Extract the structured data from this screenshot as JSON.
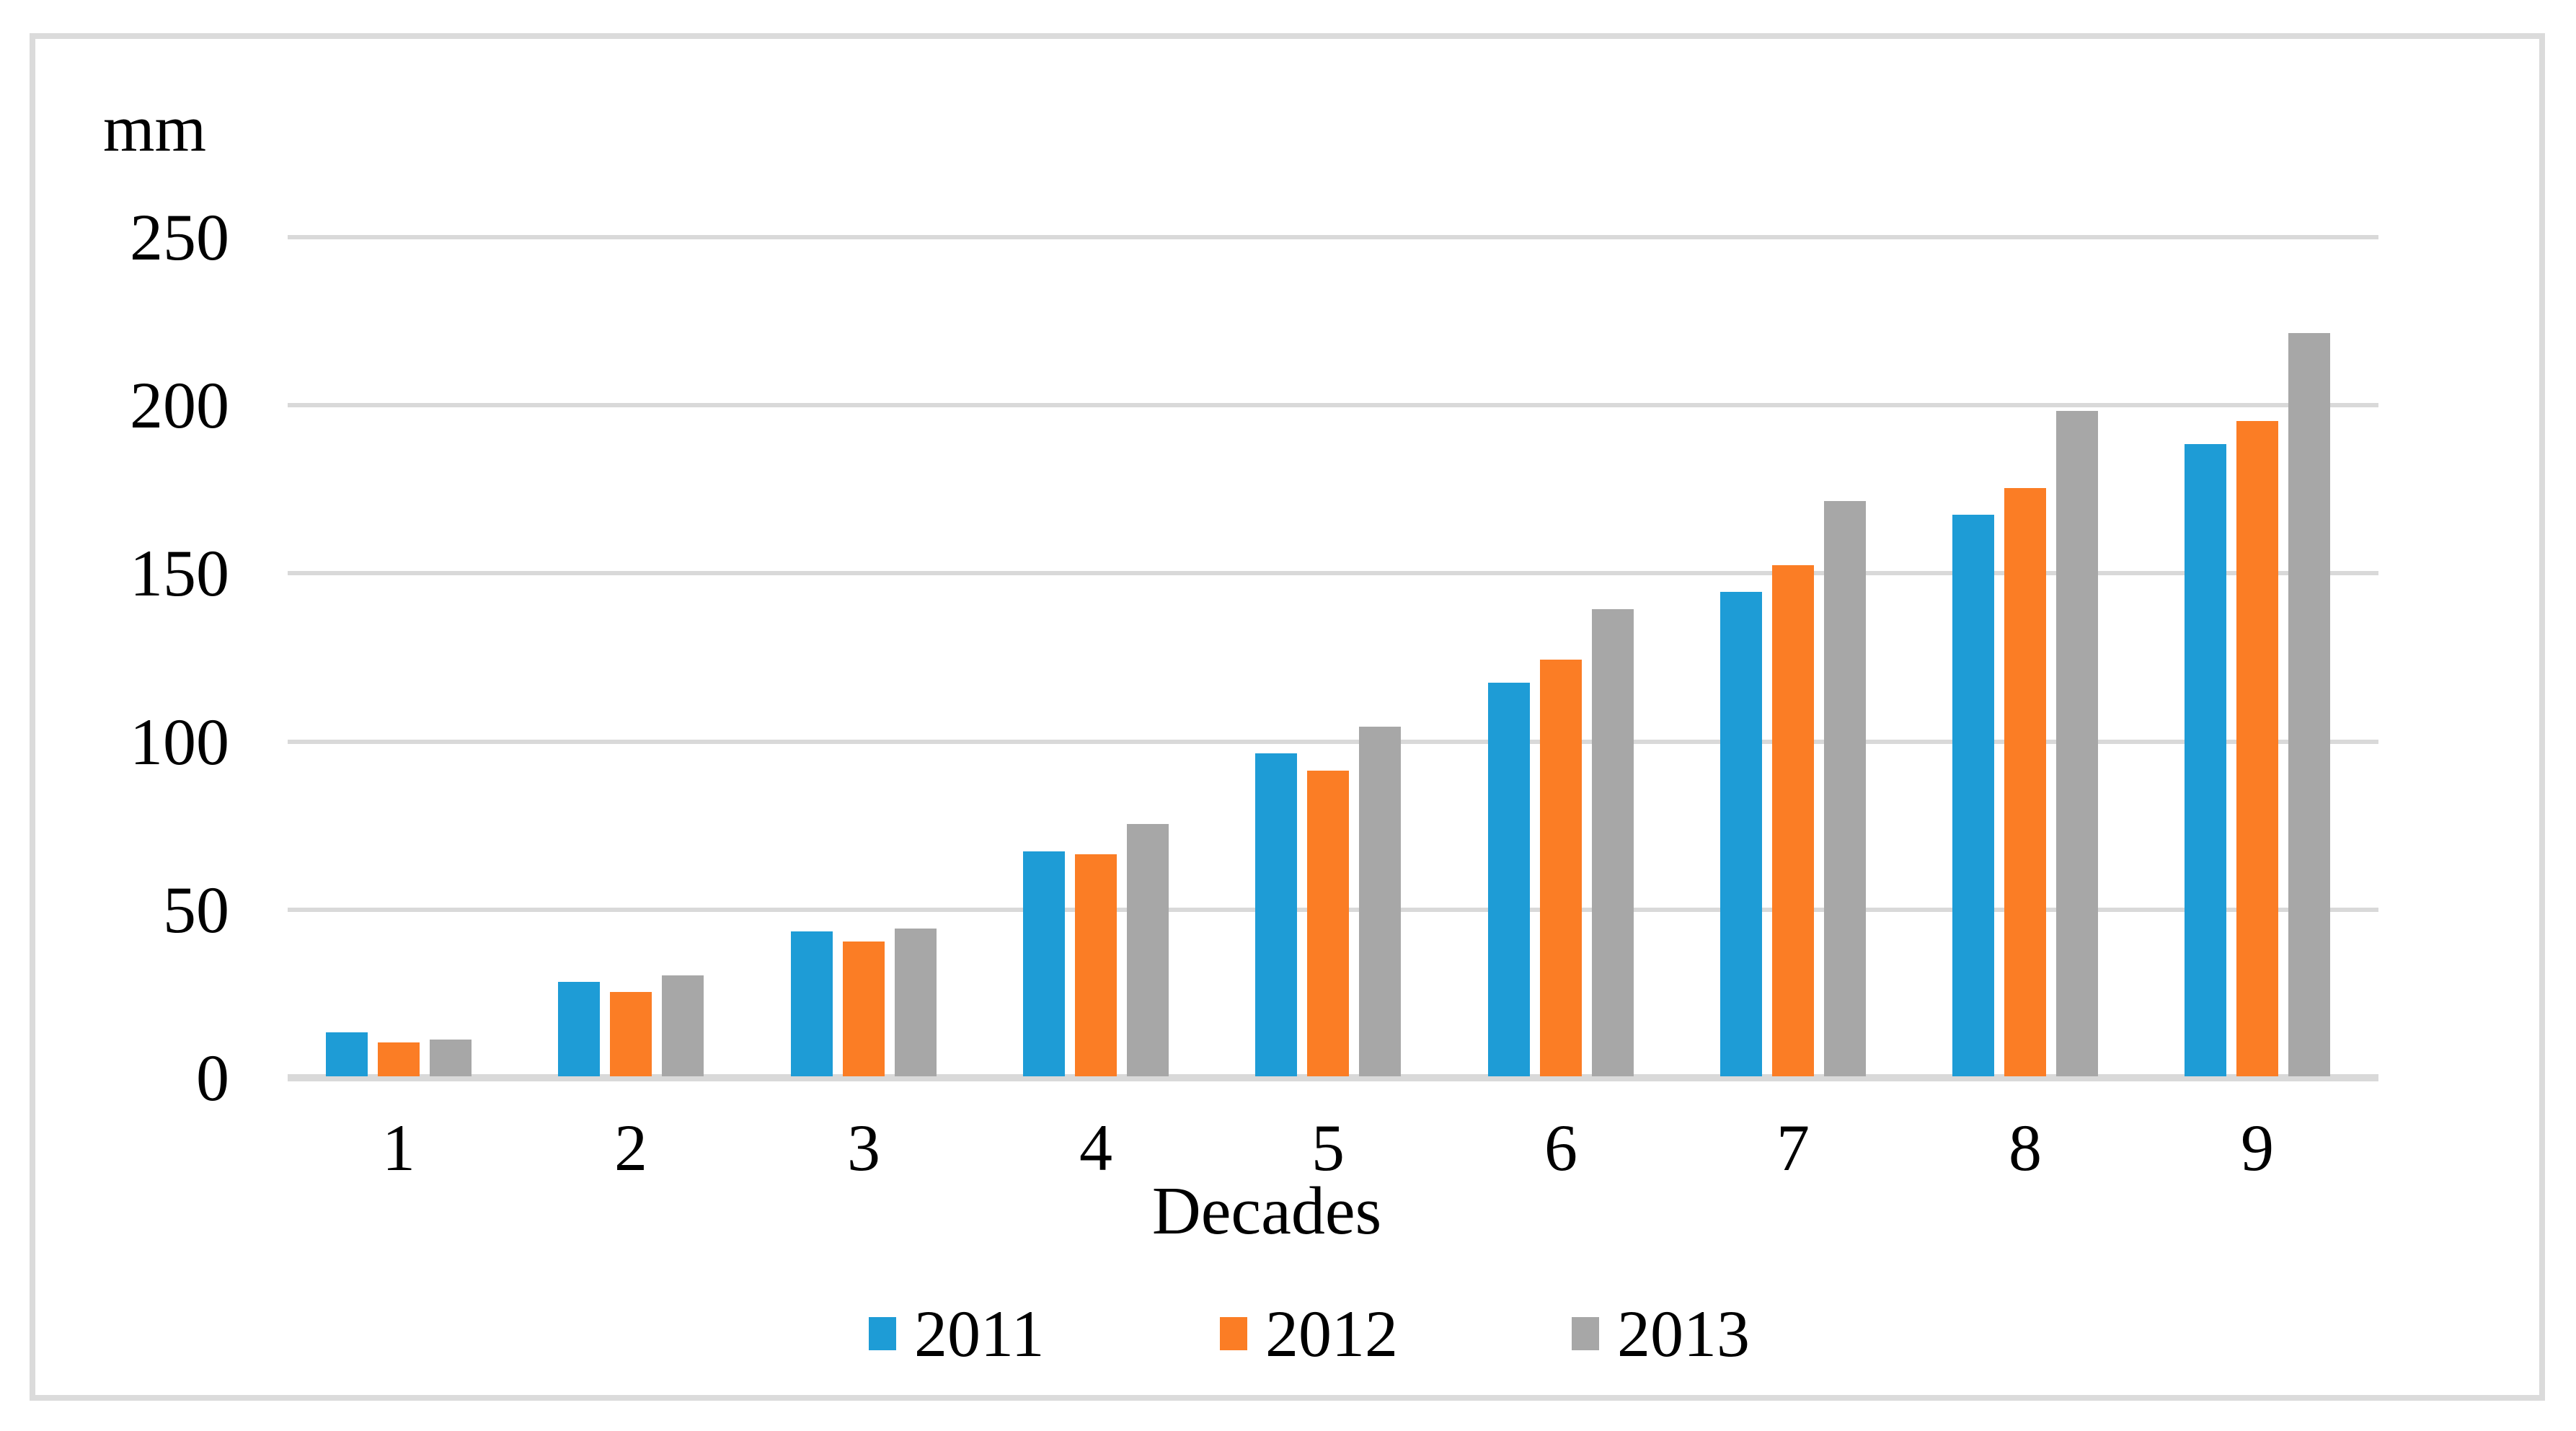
{
  "figure": {
    "y_axis_unit_label": "mm",
    "x_axis_title": "Decades"
  },
  "chart_data": {
    "type": "bar",
    "title": "",
    "categories": [
      "1",
      "2",
      "3",
      "4",
      "5",
      "6",
      "7",
      "8",
      "9"
    ],
    "xlabel": "Decades",
    "ylabel": "mm",
    "ylim": [
      0,
      250
    ],
    "y_ticks": [
      0,
      50,
      100,
      150,
      200,
      250
    ],
    "grid": true,
    "legend_position": "bottom",
    "series": [
      {
        "name": "2011",
        "color": "#1E9CD6",
        "values": [
          13,
          28,
          43,
          67,
          96,
          117,
          144,
          167,
          188
        ]
      },
      {
        "name": "2012",
        "color": "#FB7D25",
        "values": [
          10,
          25,
          40,
          66,
          91,
          124,
          152,
          175,
          195
        ]
      },
      {
        "name": "2013",
        "color": "#A7A7A7",
        "values": [
          11,
          30,
          44,
          75,
          104,
          139,
          171,
          198,
          221
        ]
      }
    ],
    "colors": {
      "gridline": "#D9D9D9",
      "axis_line": "#D9D9D9",
      "frame_border": "#DBDBDB",
      "text": "#000000"
    }
  }
}
